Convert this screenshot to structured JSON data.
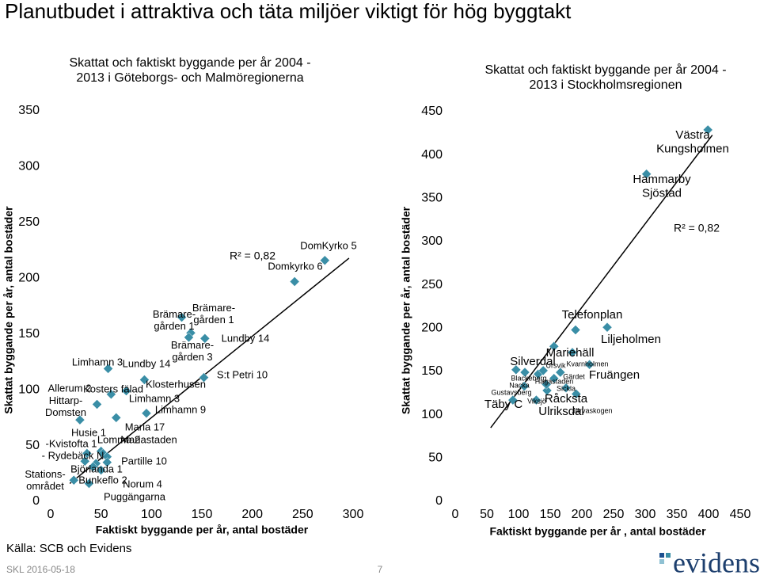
{
  "title": "Planutbudet i attraktiva och täta miljöer viktigt för hög byggtakt",
  "source": "Källa: SCB och Evidens",
  "footer_date": "SKL 2016-05-18",
  "page_number": "7",
  "logo": "evidens",
  "chart_data": [
    {
      "type": "scatter",
      "title": [
        "Skattat och faktiskt byggande per år 2004 -",
        "2013 i Göteborgs- och Malmöregionerna"
      ],
      "x_label": "Faktiskt byggande per år, antal bostäder",
      "y_label": "Skattat byggande per år, antal bostäder",
      "xlim": [
        0,
        300
      ],
      "ylim": [
        0,
        350
      ],
      "xticks": [
        0,
        50,
        100,
        150,
        200,
        250,
        300
      ],
      "yticks": [
        0,
        50,
        100,
        150,
        200,
        250,
        300,
        350
      ],
      "annotation": "R² = 0,82",
      "trendline": {
        "x": [
          19,
          296
        ],
        "y": [
          16,
          218
        ]
      },
      "series": [
        {
          "color": "#3a8ea6",
          "x": [
            272,
            242,
            130,
            139,
            137,
            153,
            57,
            93,
            152,
            75,
            60,
            46,
            95,
            65,
            29,
            50,
            36,
            52,
            56,
            34,
            56,
            45,
            23,
            38,
            50,
            42
          ],
          "values": [
            216,
            197,
            165,
            151,
            147,
            146,
            119,
            109,
            111,
            99,
            96,
            87,
            79,
            75,
            73,
            45,
            43,
            43,
            40,
            36,
            35,
            34,
            19,
            16,
            28,
            31
          ],
          "labels": [
            "DomKyrko 5",
            "Domkyrko 6",
            "Brämare-\ngården 1",
            "Brämare-\ngården 1",
            "Brämare-\ngården 3",
            "Lundby 14",
            "Limhamn 3",
            "Lundby 14",
            "S:t Petri 10",
            "Klosterhusen",
            "Kosters fälad",
            "Allerum 2",
            "Limhamn 9",
            "Limhamn 3",
            "Hittarp-\nDomsten",
            "Maria 17",
            "Husie 1",
            "-Kvistofta 1",
            "Lomma 2",
            "- Rydebäck N",
            "Mariastaden",
            "Partille 10",
            "Stations-\nområdet",
            "Björlanda 1",
            "Bunkeflo 2",
            "Norum 4"
          ]
        }
      ],
      "extra_labels": [
        "Puggängarna"
      ]
    },
    {
      "type": "scatter",
      "title": [
        "Skattat och faktiskt byggande per år 2004 -",
        "2013 i Stockholmsregionen"
      ],
      "x_label": "Faktiskt byggande per år , antal bostäder",
      "y_label": "Skattat byggande per år, antal bostäder",
      "xlim": [
        0,
        450
      ],
      "ylim": [
        0,
        450
      ],
      "xticks": [
        0,
        50,
        100,
        150,
        200,
        250,
        300,
        350,
        400,
        450
      ],
      "yticks": [
        0,
        50,
        100,
        150,
        200,
        250,
        300,
        350,
        400,
        450
      ],
      "annotation": "R² = 0,82",
      "trendline": {
        "x": [
          56,
          406
        ],
        "y": [
          85,
          423
        ]
      },
      "series": [
        {
          "color": "#3a8ea6",
          "x": [
            399,
            302,
            240,
            190,
            156,
            96,
            212,
            185,
            166,
            110,
            156,
            131,
            139,
            175,
            109,
            145,
            191,
            91,
            128,
            144
          ],
          "values": [
            429,
            378,
            201,
            198,
            179,
            152,
            158,
            172,
            149,
            149,
            142,
            147,
            151,
            131,
            133,
            128,
            124,
            117,
            117,
            135
          ],
          "labels": [
            "Västra\nKungsholmen",
            "Hammarby\nSjöstad",
            "Liljeholmen",
            "Telefonplan",
            "Mariehäll",
            "Silverdal",
            "Fruängen",
            "Ursvik",
            "Kvarnholmen",
            "Blackeberg",
            "Gärdet",
            "Nacka",
            "Hagastaden",
            "Sickla",
            "Gustavsberg",
            "Viksjö",
            "Råcksta",
            "Täby C",
            "Ulriksdal",
            "Järvaskogen"
          ]
        }
      ]
    }
  ]
}
